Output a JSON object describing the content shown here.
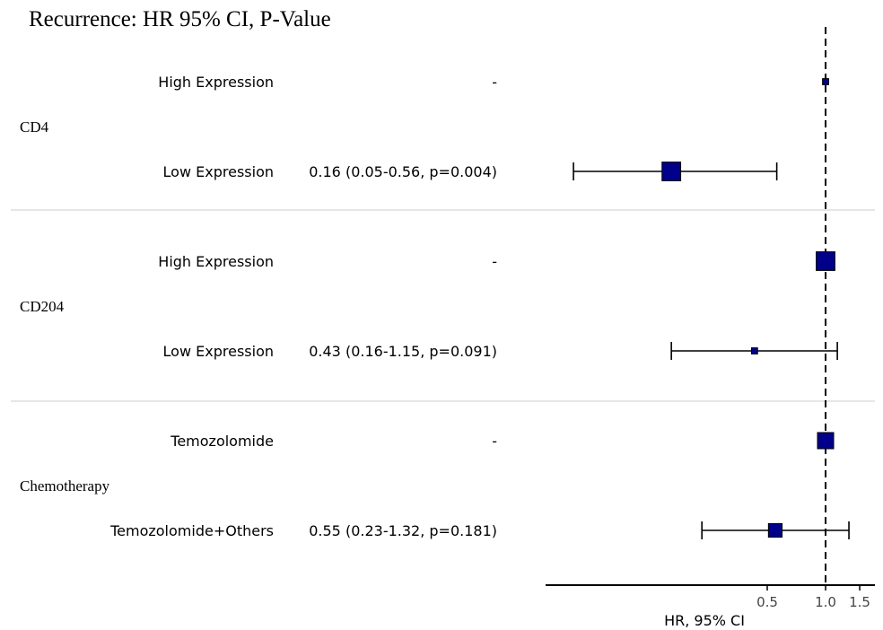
{
  "chart_data": {
    "type": "forest",
    "title": "Recurrence: HR 95% CI, P-Value",
    "xlabel": "HR, 95% CI",
    "reference_line": 1.0,
    "xticks": [
      "0.5",
      "1.0",
      "1.5"
    ],
    "groups": [
      {
        "name": "CD4",
        "rows": [
          {
            "label": "High Expression",
            "text": "-",
            "hr": 1.0,
            "lower": null,
            "upper": null,
            "weight": 0.1
          },
          {
            "label": "Low Expression",
            "text": "0.16 (0.05-0.56, p=0.004)",
            "hr": 0.16,
            "lower": 0.05,
            "upper": 0.56,
            "weight": 0.6
          }
        ]
      },
      {
        "name": "CD204",
        "rows": [
          {
            "label": "High Expression",
            "text": "-",
            "hr": 1.0,
            "lower": null,
            "upper": null,
            "weight": 0.6
          },
          {
            "label": "Low Expression",
            "text": "0.43 (0.16-1.15, p=0.091)",
            "hr": 0.43,
            "lower": 0.16,
            "upper": 1.15,
            "weight": 0.1
          }
        ]
      },
      {
        "name": "Chemotherapy",
        "rows": [
          {
            "label": "Temozolomide",
            "text": "-",
            "hr": 1.0,
            "lower": null,
            "upper": null,
            "weight": 0.5
          },
          {
            "label": "Temozolomide+Others",
            "text": "0.55 (0.23-1.32, p=0.181)",
            "hr": 0.55,
            "lower": 0.23,
            "upper": 1.32,
            "weight": 0.4
          }
        ]
      }
    ],
    "colors": {
      "box": "#00008b",
      "line": "#000000",
      "separator": "#cccccc"
    }
  }
}
